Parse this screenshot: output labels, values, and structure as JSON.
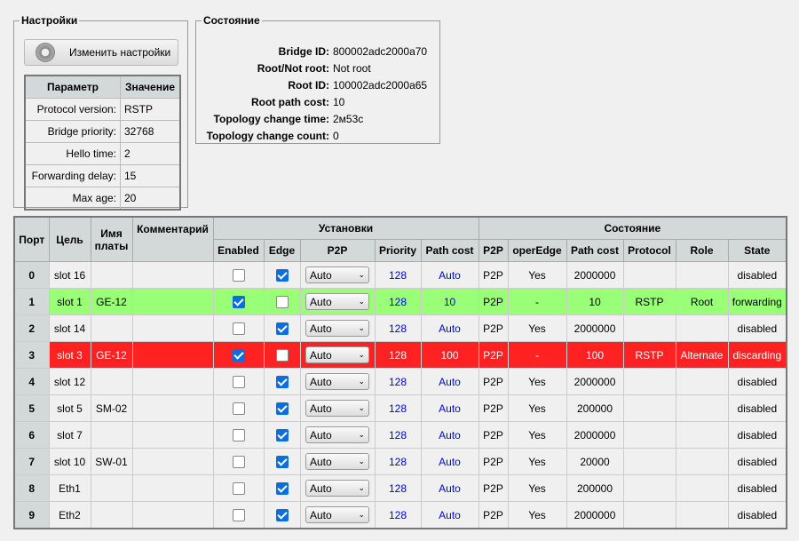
{
  "settings": {
    "legend": "Настройки",
    "button": "Изменить настройки",
    "head_param": "Параметр",
    "head_value": "Значение",
    "params": [
      {
        "k": "Protocol version:",
        "v": "RSTP"
      },
      {
        "k": "Bridge priority:",
        "v": "32768"
      },
      {
        "k": "Hello time:",
        "v": "2"
      },
      {
        "k": "Forwarding delay:",
        "v": "15"
      },
      {
        "k": "Max age:",
        "v": "20"
      }
    ]
  },
  "status": {
    "legend": "Состояние",
    "items": [
      {
        "k": "Bridge ID:",
        "v": "800002adc2000a70"
      },
      {
        "k": "Root/Not root:",
        "v": "Not root"
      },
      {
        "k": "Root ID:",
        "v": "100002adc2000a65"
      },
      {
        "k": "Root path cost:",
        "v": "10"
      },
      {
        "k": "Topology change time:",
        "v": "2м53с"
      },
      {
        "k": "Topology change count:",
        "v": "0"
      }
    ]
  },
  "table": {
    "headers": {
      "port": "Порт",
      "target": "Цель",
      "board": "Имя платы",
      "comment": "Комментарий",
      "settings": "Установки",
      "state": "Состояние",
      "enabled": "Enabled",
      "edge": "Edge",
      "p2p": "P2P",
      "priority": "Priority",
      "pathcost": "Path cost",
      "sp2p": "P2P",
      "operedge": "operEdge",
      "spathcost": "Path cost",
      "protocol": "Protocol",
      "role": "Role",
      "stateCol": "State"
    },
    "colors": {
      "root": "#99ff77",
      "alternate": "#ff2222"
    },
    "rows": [
      {
        "port": "0",
        "target": "slot 16",
        "board": "",
        "comment": "",
        "enabled": false,
        "edge": true,
        "p2p": "Auto",
        "priority": "128",
        "pathcost": "Auto",
        "sp2p": "P2P",
        "operedge": "Yes",
        "spathcost": "2000000",
        "protocol": "",
        "role": "",
        "state": "disabled",
        "hl": ""
      },
      {
        "port": "1",
        "target": "slot 1",
        "board": "GE-12",
        "comment": "",
        "enabled": true,
        "edge": false,
        "p2p": "Auto",
        "priority": "128",
        "pathcost": "10",
        "sp2p": "P2P",
        "operedge": "-",
        "spathcost": "10",
        "protocol": "RSTP",
        "role": "Root",
        "state": "forwarding",
        "hl": "green"
      },
      {
        "port": "2",
        "target": "slot 14",
        "board": "",
        "comment": "",
        "enabled": false,
        "edge": true,
        "p2p": "Auto",
        "priority": "128",
        "pathcost": "Auto",
        "sp2p": "P2P",
        "operedge": "Yes",
        "spathcost": "2000000",
        "protocol": "",
        "role": "",
        "state": "disabled",
        "hl": ""
      },
      {
        "port": "3",
        "target": "slot 3",
        "board": "GE-12",
        "comment": "",
        "enabled": true,
        "edge": false,
        "p2p": "Auto",
        "priority": "128",
        "pathcost": "100",
        "sp2p": "P2P",
        "operedge": "-",
        "spathcost": "100",
        "protocol": "RSTP",
        "role": "Alternate",
        "state": "discarding",
        "hl": "red"
      },
      {
        "port": "4",
        "target": "slot 12",
        "board": "",
        "comment": "",
        "enabled": false,
        "edge": true,
        "p2p": "Auto",
        "priority": "128",
        "pathcost": "Auto",
        "sp2p": "P2P",
        "operedge": "Yes",
        "spathcost": "2000000",
        "protocol": "",
        "role": "",
        "state": "disabled",
        "hl": ""
      },
      {
        "port": "5",
        "target": "slot 5",
        "board": "SM-02",
        "comment": "",
        "enabled": false,
        "edge": true,
        "p2p": "Auto",
        "priority": "128",
        "pathcost": "Auto",
        "sp2p": "P2P",
        "operedge": "Yes",
        "spathcost": "200000",
        "protocol": "",
        "role": "",
        "state": "disabled",
        "hl": ""
      },
      {
        "port": "6",
        "target": "slot 7",
        "board": "",
        "comment": "",
        "enabled": false,
        "edge": true,
        "p2p": "Auto",
        "priority": "128",
        "pathcost": "Auto",
        "sp2p": "P2P",
        "operedge": "Yes",
        "spathcost": "2000000",
        "protocol": "",
        "role": "",
        "state": "disabled",
        "hl": ""
      },
      {
        "port": "7",
        "target": "slot 10",
        "board": "SW-01",
        "comment": "",
        "enabled": false,
        "edge": true,
        "p2p": "Auto",
        "priority": "128",
        "pathcost": "Auto",
        "sp2p": "P2P",
        "operedge": "Yes",
        "spathcost": "20000",
        "protocol": "",
        "role": "",
        "state": "disabled",
        "hl": ""
      },
      {
        "port": "8",
        "target": "Eth1",
        "board": "",
        "comment": "",
        "enabled": false,
        "edge": true,
        "p2p": "Auto",
        "priority": "128",
        "pathcost": "Auto",
        "sp2p": "P2P",
        "operedge": "Yes",
        "spathcost": "200000",
        "protocol": "",
        "role": "",
        "state": "disabled",
        "hl": ""
      },
      {
        "port": "9",
        "target": "Eth2",
        "board": "",
        "comment": "",
        "enabled": false,
        "edge": true,
        "p2p": "Auto",
        "priority": "128",
        "pathcost": "Auto",
        "sp2p": "P2P",
        "operedge": "Yes",
        "spathcost": "2000000",
        "protocol": "",
        "role": "",
        "state": "disabled",
        "hl": ""
      }
    ]
  }
}
